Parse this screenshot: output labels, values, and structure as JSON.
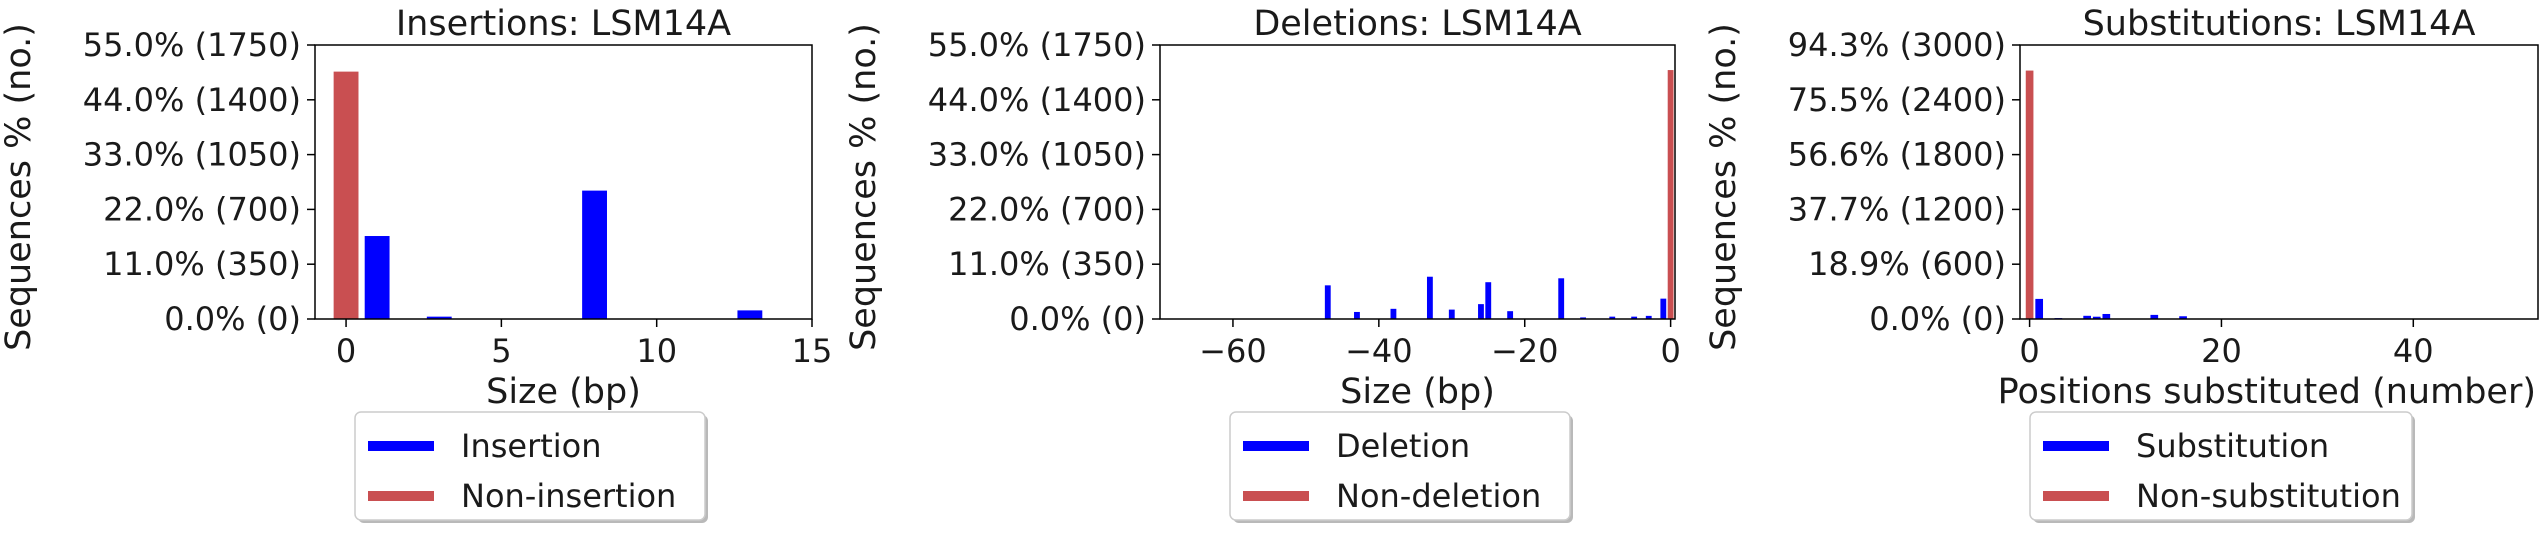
{
  "colors": {
    "accent": "#0000ff",
    "reference": "#c94f51",
    "axis": "#000000"
  },
  "chart_data": [
    {
      "type": "bar",
      "title": "Insertions: LSM14A",
      "xlabel": "Size (bp)",
      "ylabel": "Sequences % (no.)",
      "xlim": [
        -1,
        15
      ],
      "ylim": [
        0,
        1750
      ],
      "xticks": [
        {
          "v": 0,
          "label": "0"
        },
        {
          "v": 5,
          "label": "5"
        },
        {
          "v": 10,
          "label": "10"
        },
        {
          "v": 15,
          "label": "15"
        }
      ],
      "yticks": [
        {
          "v": 0,
          "label": "0.0% (0)"
        },
        {
          "v": 350,
          "label": "11.0% (350)"
        },
        {
          "v": 700,
          "label": "22.0% (700)"
        },
        {
          "v": 1050,
          "label": "33.0% (1050)"
        },
        {
          "v": 1400,
          "label": "44.0% (1400)"
        },
        {
          "v": 1750,
          "label": "55.0% (1750)"
        }
      ],
      "bar_width": 0.8,
      "series": [
        {
          "name": "Insertion",
          "color": "#0000ff",
          "points": [
            [
              1,
              530
            ],
            [
              3,
              15
            ],
            [
              8,
              820
            ],
            [
              13,
              55
            ]
          ]
        },
        {
          "name": "Non-insertion",
          "color": "#c94f51",
          "points": [
            [
              0,
              1580
            ]
          ]
        }
      ],
      "legend": [
        {
          "label": "Insertion",
          "color": "#0000ff"
        },
        {
          "label": "Non-insertion",
          "color": "#c94f51"
        }
      ],
      "legend_position": "bottom"
    },
    {
      "type": "bar",
      "title": "Deletions: LSM14A",
      "xlabel": "Size (bp)",
      "ylabel": "Sequences % (no.)",
      "xlim": [
        -70,
        0.6
      ],
      "ylim": [
        0,
        1750
      ],
      "xticks": [
        {
          "v": -60,
          "label": "−60"
        },
        {
          "v": -40,
          "label": "−40"
        },
        {
          "v": -20,
          "label": "−20"
        },
        {
          "v": 0,
          "label": "0"
        }
      ],
      "yticks": [
        {
          "v": 0,
          "label": "0.0% (0)"
        },
        {
          "v": 350,
          "label": "11.0% (350)"
        },
        {
          "v": 700,
          "label": "22.0% (700)"
        },
        {
          "v": 1050,
          "label": "33.0% (1050)"
        },
        {
          "v": 1400,
          "label": "44.0% (1400)"
        },
        {
          "v": 1750,
          "label": "55.0% (1750)"
        }
      ],
      "bar_width": 0.8,
      "series": [
        {
          "name": "Deletion",
          "color": "#0000ff",
          "points": [
            [
              -47,
              215
            ],
            [
              -43,
              45
            ],
            [
              -38,
              65
            ],
            [
              -33,
              270
            ],
            [
              -30,
              60
            ],
            [
              -26,
              95
            ],
            [
              -25,
              235
            ],
            [
              -22,
              50
            ],
            [
              -15,
              260
            ],
            [
              -12,
              10
            ],
            [
              -8,
              15
            ],
            [
              -5,
              15
            ],
            [
              -3,
              20
            ],
            [
              -1,
              130
            ]
          ]
        },
        {
          "name": "Non-deletion",
          "color": "#c94f51",
          "points": [
            [
              0,
              1590
            ]
          ]
        }
      ],
      "legend": [
        {
          "label": "Deletion",
          "color": "#0000ff"
        },
        {
          "label": "Non-deletion",
          "color": "#c94f51"
        }
      ],
      "legend_position": "bottom"
    },
    {
      "type": "bar",
      "title": "Substitutions: LSM14A",
      "xlabel": "Positions substituted (number)",
      "ylabel": "Sequences % (no.)",
      "xlim": [
        -1,
        53
      ],
      "ylim": [
        0,
        3000
      ],
      "xticks": [
        {
          "v": 0,
          "label": "0"
        },
        {
          "v": 20,
          "label": "20"
        },
        {
          "v": 40,
          "label": "40"
        }
      ],
      "yticks": [
        {
          "v": 0,
          "label": "0.0% (0)"
        },
        {
          "v": 600,
          "label": "18.9% (600)"
        },
        {
          "v": 1200,
          "label": "37.7% (1200)"
        },
        {
          "v": 1800,
          "label": "56.6% (1800)"
        },
        {
          "v": 2400,
          "label": "75.5% (2400)"
        },
        {
          "v": 3000,
          "label": "94.3% (3000)"
        }
      ],
      "bar_width": 0.8,
      "series": [
        {
          "name": "Substitution",
          "color": "#0000ff",
          "points": [
            [
              1,
              220
            ],
            [
              3,
              10
            ],
            [
              6,
              35
            ],
            [
              7,
              25
            ],
            [
              8,
              55
            ],
            [
              13,
              45
            ],
            [
              16,
              30
            ]
          ]
        },
        {
          "name": "Non-substitution",
          "color": "#c94f51",
          "points": [
            [
              0,
              2720
            ]
          ]
        }
      ],
      "legend": [
        {
          "label": "Substitution",
          "color": "#0000ff"
        },
        {
          "label": "Non-substitution",
          "color": "#c94f51"
        }
      ],
      "legend_position": "bottom"
    }
  ]
}
